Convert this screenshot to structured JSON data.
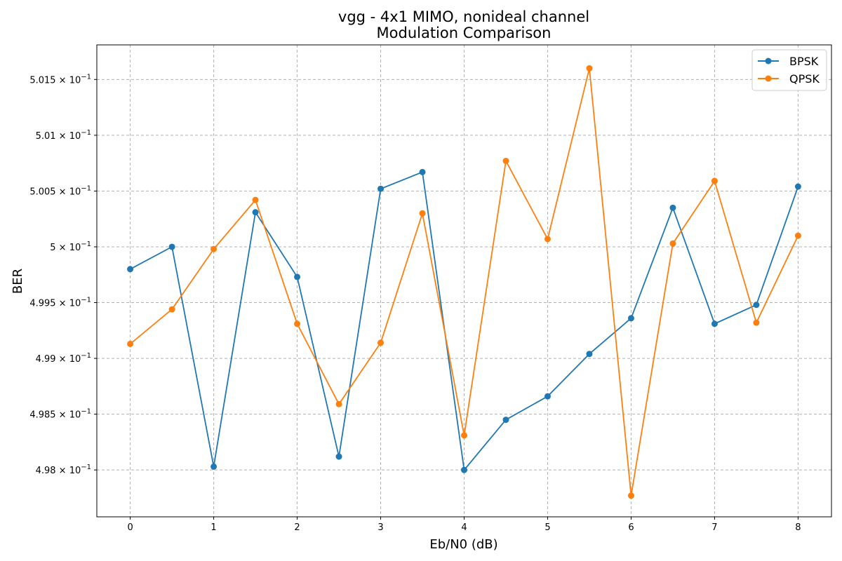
{
  "chart_data": {
    "type": "line",
    "title_line1": "vgg - 4x1 MIMO, nonideal channel",
    "title_line2": "Modulation Comparison",
    "xlabel": "Eb/N0 (dB)",
    "ylabel": "BER",
    "x": [
      0,
      0.5,
      1,
      1.5,
      2,
      2.5,
      3,
      3.5,
      4,
      4.5,
      5,
      5.5,
      6,
      6.5,
      7,
      7.5,
      8
    ],
    "xlim": [
      -0.4,
      8.4
    ],
    "ylim": [
      0.49758,
      0.50181
    ],
    "xticks": [
      0,
      1,
      2,
      3,
      4,
      5,
      6,
      7,
      8
    ],
    "xtick_labels": [
      "0",
      "1",
      "2",
      "3",
      "4",
      "5",
      "6",
      "7",
      "8"
    ],
    "yticks": [
      {
        "value": 0.498,
        "mantissa": "4.98"
      },
      {
        "value": 0.4985,
        "mantissa": "4.985"
      },
      {
        "value": 0.499,
        "mantissa": "4.99"
      },
      {
        "value": 0.4995,
        "mantissa": "4.995"
      },
      {
        "value": 0.5,
        "mantissa": "5"
      },
      {
        "value": 0.5005,
        "mantissa": "5.005"
      },
      {
        "value": 0.501,
        "mantissa": "5.01"
      },
      {
        "value": 0.5015,
        "mantissa": "5.015"
      }
    ],
    "ytick_suffix": "× 10",
    "ytick_exponent": "−1",
    "grid": true,
    "legend_position": "top-right",
    "series": [
      {
        "name": "BPSK",
        "color": "#1f77b4",
        "values": [
          0.4998,
          0.5,
          0.49803,
          0.50031,
          0.49973,
          0.49812,
          0.50052,
          0.50067,
          0.498,
          0.49845,
          0.49866,
          0.49904,
          0.49936,
          0.50035,
          0.49931,
          0.49948,
          0.50054
        ]
      },
      {
        "name": "QPSK",
        "color": "#ff7f0e",
        "values": [
          0.49913,
          0.49944,
          0.49998,
          0.50042,
          0.49931,
          0.49859,
          0.49914,
          0.5003,
          0.49831,
          0.50077,
          0.50007,
          0.5016,
          0.49777,
          0.50003,
          0.50059,
          0.49932,
          0.5001
        ]
      }
    ]
  }
}
